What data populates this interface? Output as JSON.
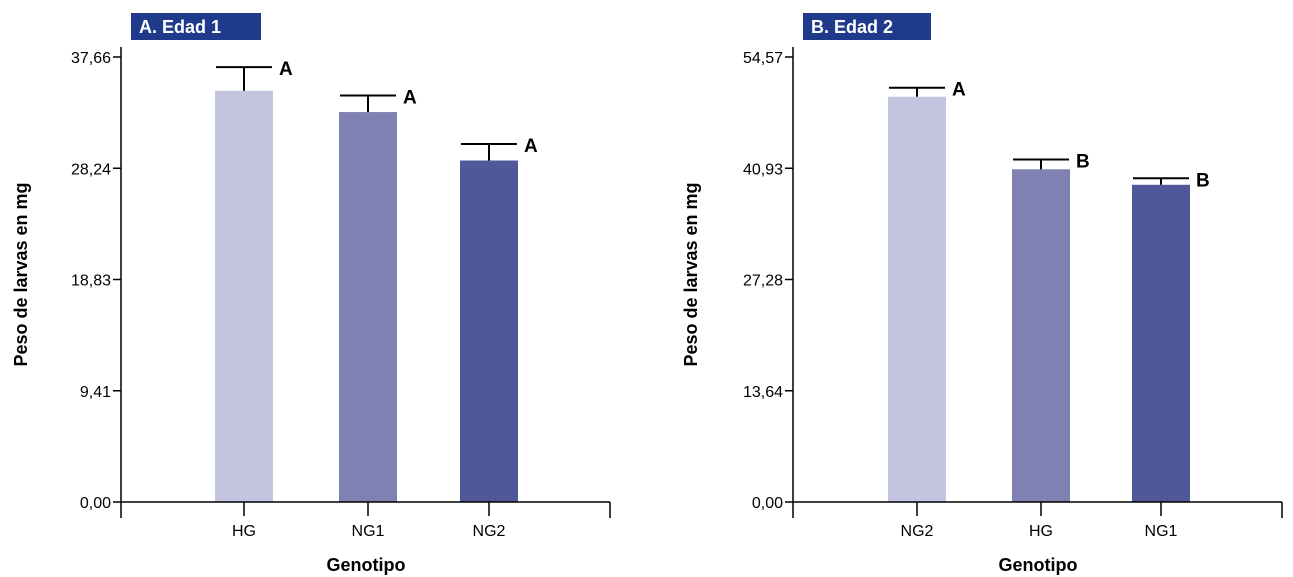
{
  "chart_data": [
    {
      "type": "bar",
      "title": "A. Edad 1",
      "xlabel": "Genotipo",
      "ylabel": "Peso de larvas en mg",
      "ylim": [
        0,
        37.66
      ],
      "yticks": [
        "0,00",
        "9,41",
        "18,83",
        "28,24",
        "37,66"
      ],
      "categories": [
        "HG",
        "NG1",
        "NG2"
      ],
      "values": [
        34.8,
        33.0,
        28.9
      ],
      "errors": [
        2.0,
        1.4,
        1.4
      ],
      "significance": [
        "A",
        "A",
        "A"
      ],
      "colors": [
        "#c3c5e1",
        "#7f81b3",
        "#4f5898"
      ],
      "title_bg": "#1f3a8a",
      "grid": false
    },
    {
      "type": "bar",
      "title": "B. Edad 2",
      "xlabel": "Genotipo",
      "ylabel": "Peso de larvas en mg",
      "ylim": [
        0,
        54.57
      ],
      "yticks": [
        "0,00",
        "13,64",
        "27,28",
        "40,93",
        "54,57"
      ],
      "categories": [
        "NG2",
        "HG",
        "NG1"
      ],
      "values": [
        49.7,
        40.8,
        38.9
      ],
      "errors": [
        1.1,
        1.2,
        0.8
      ],
      "significance": [
        "A",
        "B",
        "B"
      ],
      "colors": [
        "#c3c5e1",
        "#7f81b3",
        "#4f5898"
      ],
      "title_bg": "#1f3a8a",
      "grid": false
    }
  ]
}
